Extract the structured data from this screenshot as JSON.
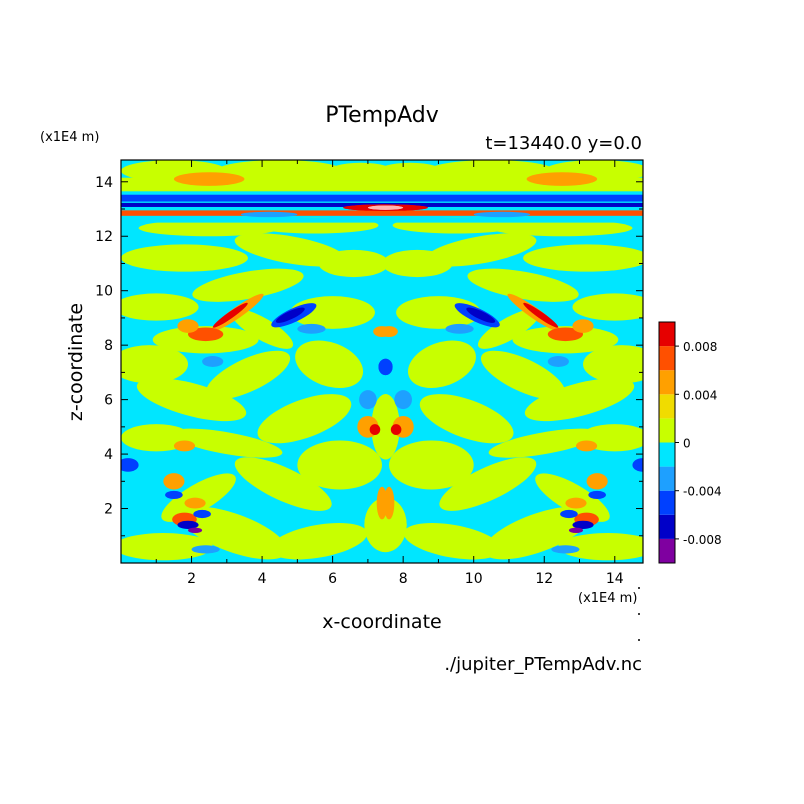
{
  "chart_data": {
    "type": "heatmap",
    "title": "PTempAdv",
    "subtitle": "t=13440.0 y=0.0",
    "xlabel": "x-coordinate",
    "ylabel": "z-coordinate",
    "x_units": "(x1E4 m)",
    "y_units": "(x1E4 m)",
    "source_file": "./jupiter_PTempAdv.nc",
    "xlim": [
      0,
      14.8
    ],
    "ylim": [
      0,
      14.8
    ],
    "x_ticks": [
      2,
      4,
      6,
      8,
      10,
      12,
      14
    ],
    "y_ticks": [
      2,
      4,
      6,
      8,
      10,
      12,
      14
    ],
    "grid": false,
    "colorbar": {
      "levels": [
        -0.01,
        -0.008,
        -0.006,
        -0.004,
        -0.002,
        0,
        0.002,
        0.004,
        0.006,
        0.008,
        0.01
      ],
      "colors": [
        "#7f00a0",
        "#0000c8",
        "#0040ff",
        "#1ea0ff",
        "#00e6ff",
        "#c8ff00",
        "#f0dc00",
        "#ffa000",
        "#ff5000",
        "#e60000",
        "#ffb4b4"
      ],
      "tick_labels": [
        {
          "value": 0.008,
          "label": "0.008"
        },
        {
          "value": 0.004,
          "label": "0.004"
        },
        {
          "value": 0,
          "label": "0"
        },
        {
          "value": -0.004,
          "label": "-0.004"
        },
        {
          "value": -0.008,
          "label": "-0.008"
        }
      ]
    },
    "field_note": "Contoured perturbation-temperature advection field, nearly mirror-symmetric about x=7.5; background mixes 0 to +0.002 (yellow-green) and -0.002 to 0 (cyan); strong alternating band near z=13-13.5; red/blue features near z=8-10 and z=1-4."
  }
}
